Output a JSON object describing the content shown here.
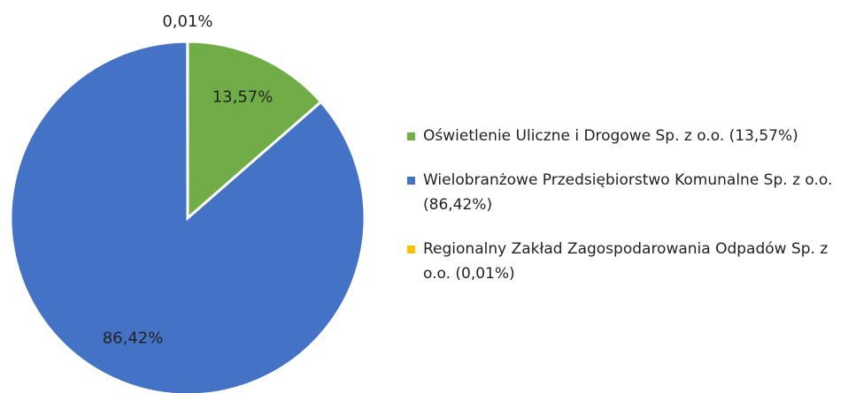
{
  "chart_data": {
    "type": "pie",
    "categories": [
      "Oświetlenie Uliczne i Drogowe Sp. z o.o. (13,57%)",
      "Wielobranżowe Przedsiębiorstwo Komunalne Sp. z o.o. (86,42%)",
      "Regionalny Zakład Zagospodarowania Odpadów Sp. z o.o. (0,01%)"
    ],
    "values": [
      13.57,
      86.42,
      0.01
    ],
    "value_labels": [
      "13,57%",
      "86,42%",
      "0,01%"
    ],
    "colors": [
      "#70ad47",
      "#4472c4",
      "#ffc000"
    ],
    "legend": "right"
  }
}
